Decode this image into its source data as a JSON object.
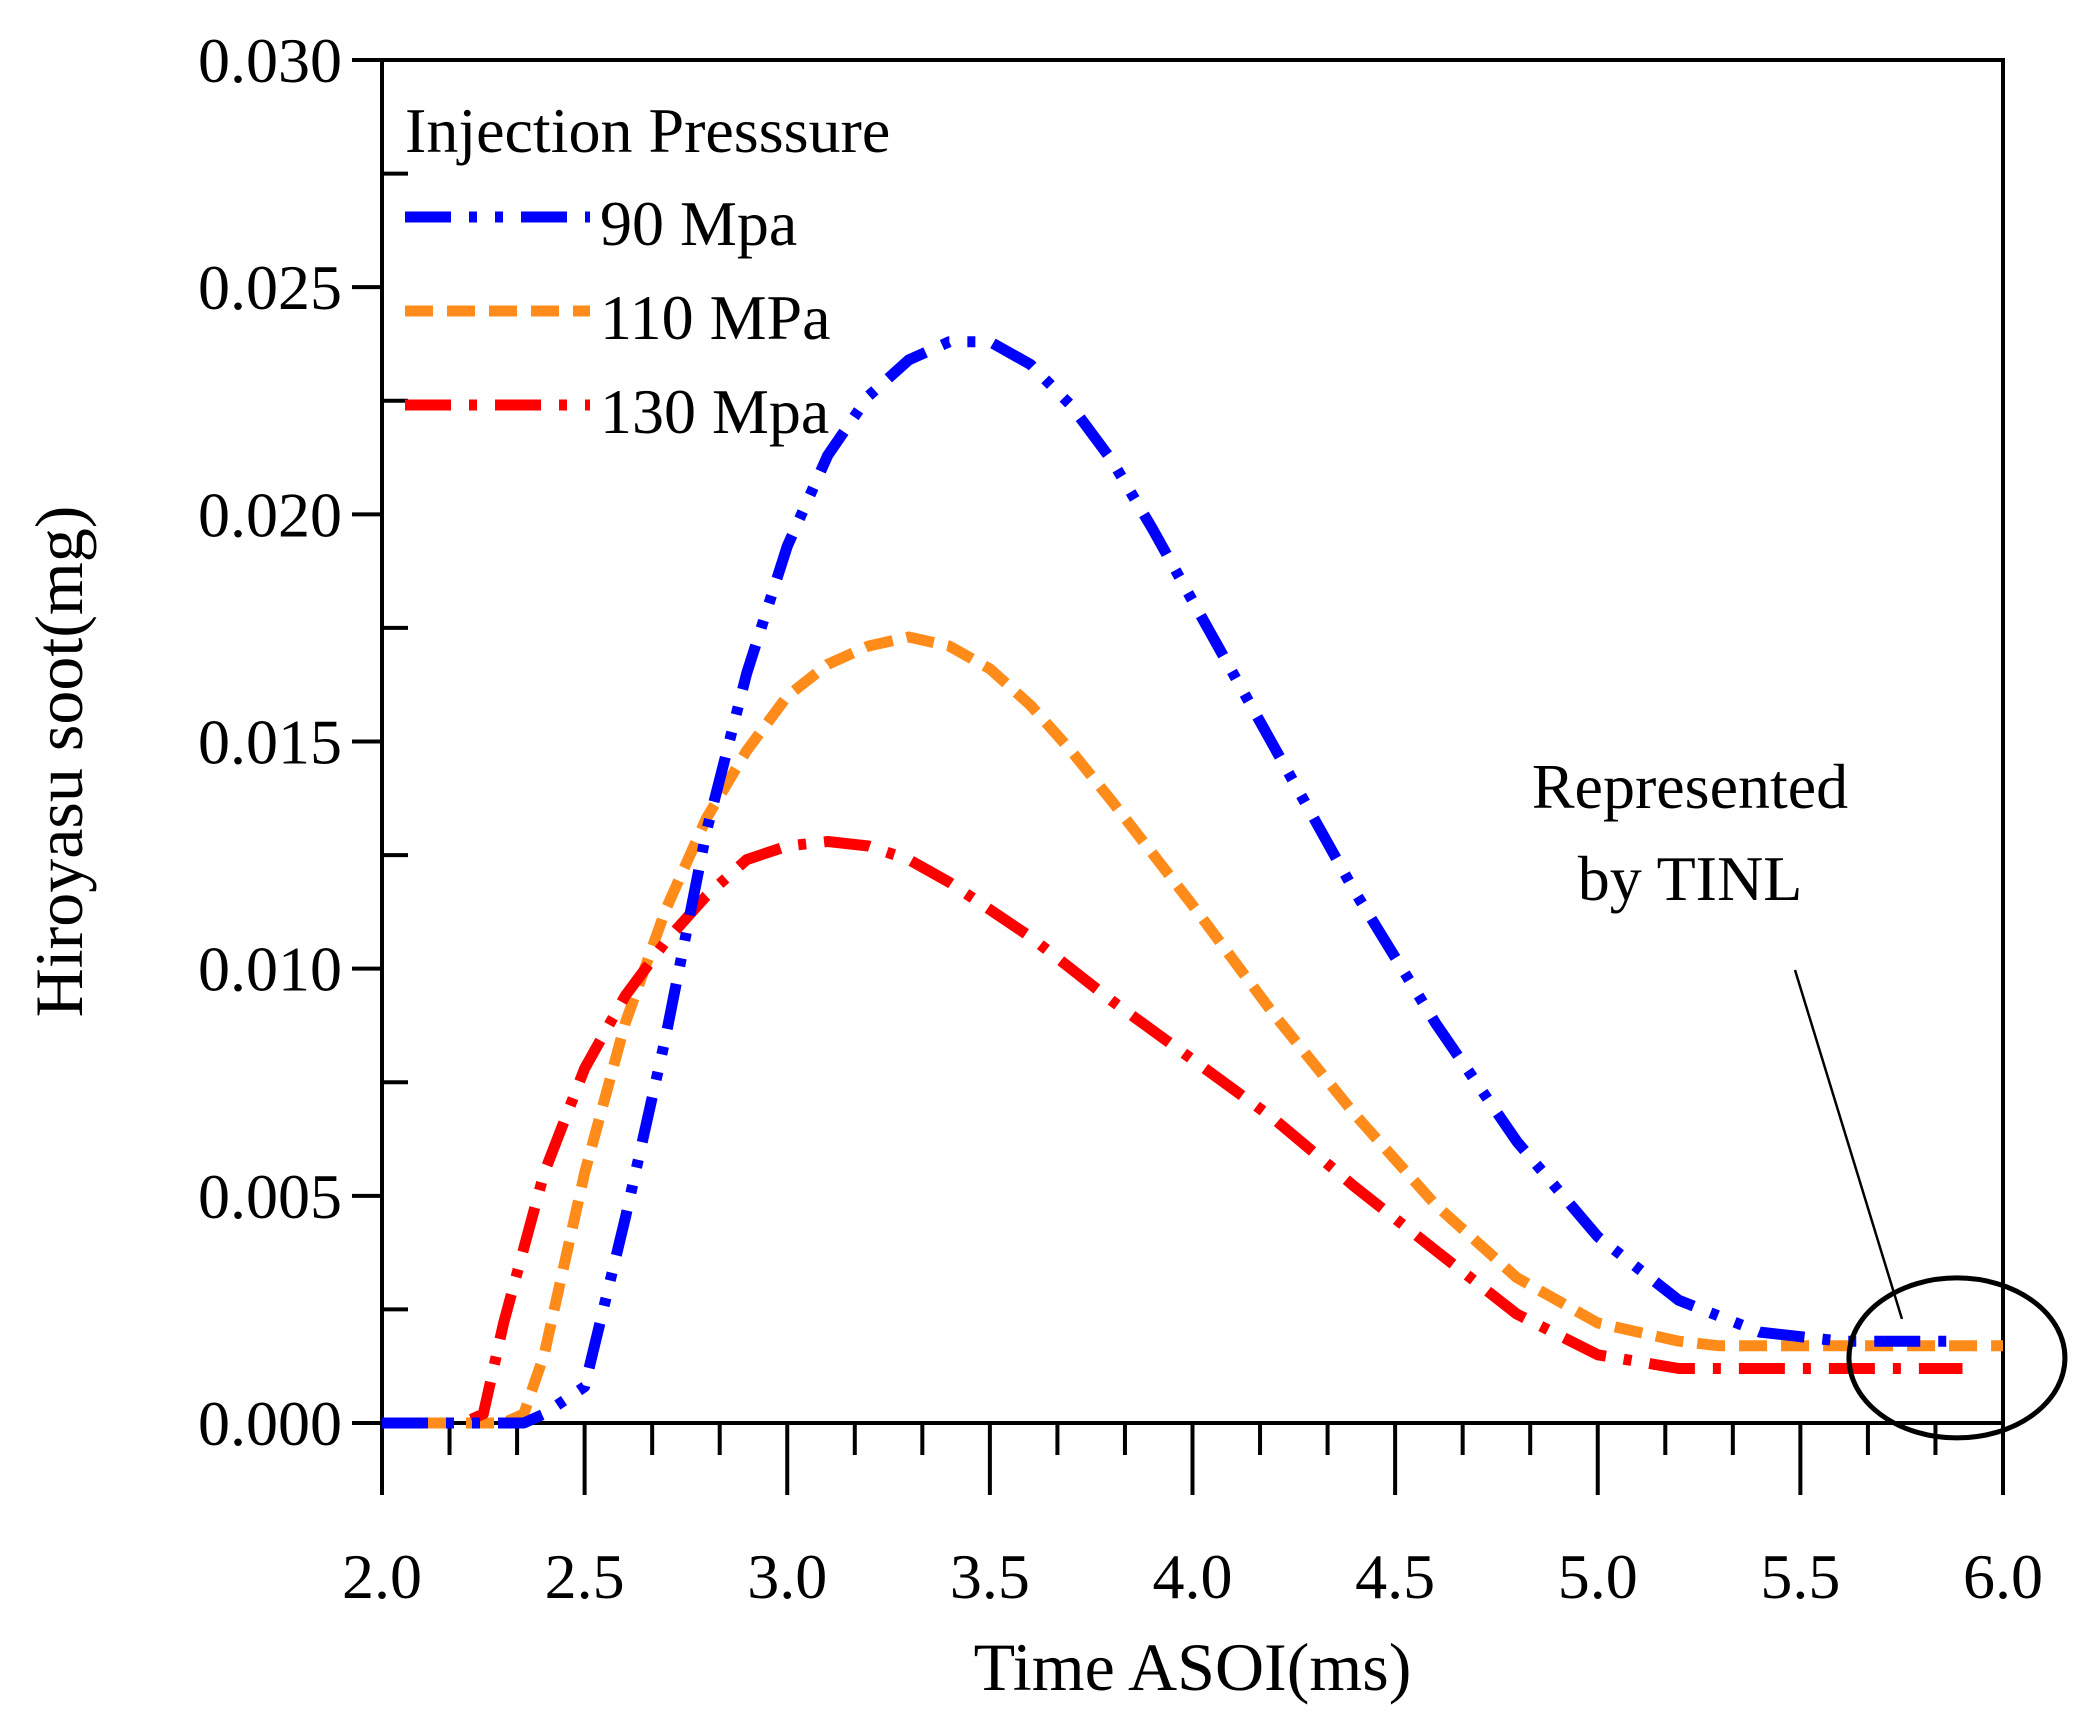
{
  "chart_data": {
    "type": "line",
    "title": "",
    "xlabel": "Time ASOI(ms)",
    "ylabel": "Hiroyasu soot(mg)",
    "xlim": [
      2.0,
      6.0
    ],
    "ylim": [
      0.0,
      0.03
    ],
    "xticks": [
      "2.0",
      "2.5",
      "3.0",
      "3.5",
      "4.0",
      "4.5",
      "5.0",
      "5.5",
      "6.0"
    ],
    "yticks": [
      "0.000",
      "0.005",
      "0.010",
      "0.015",
      "0.020",
      "0.025",
      "0.030"
    ],
    "grid": false,
    "legend": {
      "title": "Injection Presssure",
      "position": "top-left"
    },
    "series": [
      {
        "name": "90 Mpa",
        "color": "#0000ff",
        "style": "dash-dot-dot",
        "x": [
          2.0,
          2.35,
          2.4,
          2.5,
          2.6,
          2.7,
          2.8,
          2.9,
          3.0,
          3.1,
          3.2,
          3.3,
          3.4,
          3.5,
          3.6,
          3.7,
          3.8,
          3.9,
          4.0,
          4.2,
          4.4,
          4.6,
          4.8,
          5.0,
          5.2,
          5.4,
          5.6,
          5.9
        ],
        "values": [
          0.0,
          0.0,
          0.0002,
          0.0008,
          0.0045,
          0.0085,
          0.013,
          0.0165,
          0.0193,
          0.0213,
          0.0226,
          0.0234,
          0.0238,
          0.0238,
          0.0233,
          0.0224,
          0.0212,
          0.0197,
          0.0181,
          0.0149,
          0.0117,
          0.0088,
          0.0062,
          0.0041,
          0.0027,
          0.002,
          0.0018,
          0.0018
        ]
      },
      {
        "name": "110 MPa",
        "color": "#ff8c1a",
        "style": "dashed",
        "x": [
          2.0,
          2.3,
          2.35,
          2.4,
          2.5,
          2.6,
          2.7,
          2.8,
          2.9,
          3.0,
          3.1,
          3.2,
          3.3,
          3.4,
          3.5,
          3.6,
          3.7,
          3.8,
          4.0,
          4.2,
          4.4,
          4.6,
          4.8,
          5.0,
          5.2,
          5.3,
          5.5,
          6.0
        ],
        "values": [
          0.0,
          0.0,
          0.0002,
          0.0015,
          0.0055,
          0.0088,
          0.0113,
          0.0133,
          0.0148,
          0.016,
          0.0167,
          0.0171,
          0.0173,
          0.0171,
          0.0166,
          0.0158,
          0.0148,
          0.0137,
          0.0114,
          0.009,
          0.0068,
          0.0048,
          0.0032,
          0.0022,
          0.0018,
          0.0017,
          0.0017,
          0.0017
        ]
      },
      {
        "name": "130 Mpa",
        "color": "#ff0000",
        "style": "dash-dot",
        "x": [
          2.0,
          2.2,
          2.25,
          2.3,
          2.4,
          2.5,
          2.6,
          2.7,
          2.8,
          2.9,
          3.0,
          3.1,
          3.2,
          3.3,
          3.4,
          3.6,
          3.8,
          4.0,
          4.2,
          4.4,
          4.6,
          4.8,
          5.0,
          5.2,
          5.9
        ],
        "values": [
          0.0,
          0.0,
          0.0002,
          0.0022,
          0.0055,
          0.0078,
          0.0094,
          0.0106,
          0.0116,
          0.0124,
          0.0127,
          0.0128,
          0.0127,
          0.0124,
          0.0119,
          0.0107,
          0.0093,
          0.008,
          0.0067,
          0.0052,
          0.0038,
          0.0024,
          0.0015,
          0.0012,
          0.0012
        ]
      }
    ],
    "annotations": [
      {
        "text_lines": [
          "Represented",
          "by TINL"
        ],
        "target_x": 5.8,
        "target_y": 0.0013
      }
    ]
  }
}
